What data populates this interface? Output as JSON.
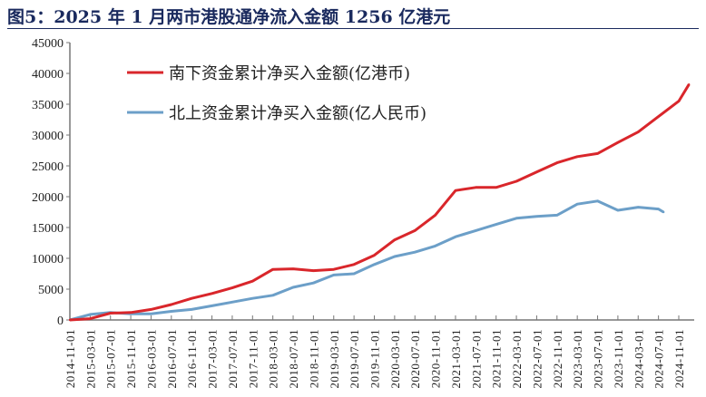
{
  "chart_data": {
    "type": "line",
    "title": "图5：2025 年 1 月两市港股通净流入金额 1256 亿港元",
    "xlabel": "",
    "ylabel": "",
    "ylim": [
      0,
      45000
    ],
    "yticks": [
      0,
      5000,
      10000,
      15000,
      20000,
      25000,
      30000,
      35000,
      40000,
      45000
    ],
    "xticks": [
      "2014-11-01",
      "2015-03-01",
      "2015-07-01",
      "2015-11-01",
      "2016-03-01",
      "2016-07-01",
      "2016-11-01",
      "2017-03-01",
      "2017-07-01",
      "2017-11-01",
      "2018-03-01",
      "2018-07-01",
      "2018-11-01",
      "2019-03-01",
      "2019-07-01",
      "2019-11-01",
      "2020-03-01",
      "2020-07-01",
      "2020-11-01",
      "2021-03-01",
      "2021-07-01",
      "2021-11-01",
      "2022-03-01",
      "2022-07-01",
      "2022-11-01",
      "2023-03-01",
      "2023-07-01",
      "2023-11-01",
      "2024-03-01",
      "2024-07-01",
      "2024-11-01"
    ],
    "legend_position": "top-left",
    "grid": false,
    "series": [
      {
        "name": "南下资金累计净买入金额(亿港币)",
        "color": "#d9262b",
        "x": [
          "2014-11",
          "2015-03",
          "2015-07",
          "2015-11",
          "2016-03",
          "2016-07",
          "2016-11",
          "2017-03",
          "2017-07",
          "2017-11",
          "2018-03",
          "2018-07",
          "2018-11",
          "2019-03",
          "2019-07",
          "2019-11",
          "2020-03",
          "2020-07",
          "2020-11",
          "2021-03",
          "2021-07",
          "2021-11",
          "2022-03",
          "2022-07",
          "2022-11",
          "2023-03",
          "2023-07",
          "2023-11",
          "2024-03",
          "2024-07",
          "2024-11",
          "2025-01"
        ],
        "values": [
          0,
          200,
          1100,
          1200,
          1700,
          2500,
          3500,
          4300,
          5200,
          6300,
          8200,
          8300,
          8000,
          8200,
          9000,
          10500,
          13000,
          14500,
          17000,
          21000,
          21500,
          21500,
          22500,
          24000,
          25500,
          26500,
          27000,
          28800,
          30500,
          33000,
          35500,
          38200
        ]
      },
      {
        "name": "北上资金累计净买入金额(亿人民币)",
        "color": "#6c9fc8",
        "x": [
          "2014-11",
          "2015-03",
          "2015-07",
          "2015-11",
          "2016-03",
          "2016-07",
          "2016-11",
          "2017-03",
          "2017-07",
          "2017-11",
          "2018-03",
          "2018-07",
          "2018-11",
          "2019-03",
          "2019-07",
          "2019-11",
          "2020-03",
          "2020-07",
          "2020-11",
          "2021-03",
          "2021-07",
          "2021-11",
          "2022-03",
          "2022-07",
          "2022-11",
          "2023-03",
          "2023-07",
          "2023-11",
          "2024-03",
          "2024-07",
          "2024-08"
        ],
        "values": [
          0,
          900,
          1200,
          1000,
          1000,
          1400,
          1700,
          2300,
          2900,
          3500,
          4000,
          5300,
          6000,
          7300,
          7500,
          9000,
          10300,
          11000,
          12000,
          13500,
          14500,
          15500,
          16500,
          16800,
          17000,
          18800,
          19300,
          17800,
          18300,
          18000,
          17500
        ]
      }
    ]
  }
}
